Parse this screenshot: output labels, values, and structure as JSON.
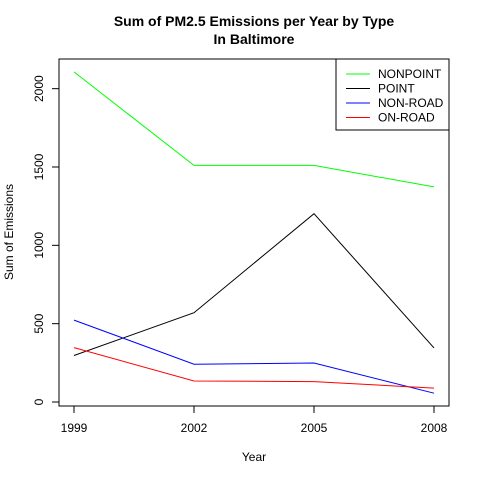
{
  "chart_data": {
    "type": "line",
    "title": "Sum of PM2.5 Emissions per Year by Type",
    "subtitle": "In Baltimore",
    "xlabel": "Year",
    "ylabel": "Sum of Emissions",
    "x": [
      1999,
      2002,
      2005,
      2008
    ],
    "xlim": [
      1999,
      2008
    ],
    "ylim": [
      0,
      2100
    ],
    "x_ticks": [
      1999,
      2002,
      2005,
      2008
    ],
    "y_ticks": [
      0,
      500,
      1000,
      1500,
      2000
    ],
    "x_tick_labels": [
      "1999",
      "2002",
      "2005",
      "2008"
    ],
    "y_tick_labels": [
      "0",
      "500",
      "1000",
      "1500",
      "2000"
    ],
    "grid": false,
    "legend_position": "top-right",
    "series": [
      {
        "name": "NONPOINT",
        "color": "#00ff00",
        "values": [
          2107,
          1510,
          1510,
          1373
        ]
      },
      {
        "name": "POINT",
        "color": "#000000",
        "values": [
          297,
          570,
          1202,
          345
        ]
      },
      {
        "name": "NON-ROAD",
        "color": "#0000ff",
        "values": [
          523,
          241,
          249,
          56
        ]
      },
      {
        "name": "ON-ROAD",
        "color": "#ff0000",
        "values": [
          347,
          134,
          130,
          89
        ]
      }
    ]
  }
}
